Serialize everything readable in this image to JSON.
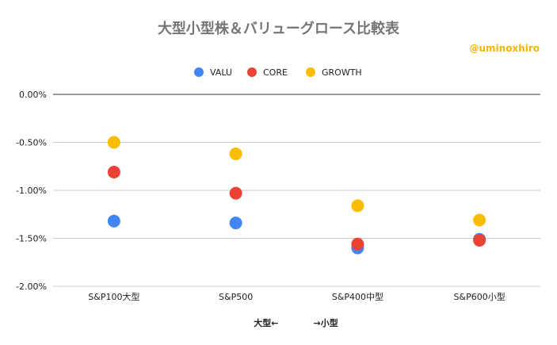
{
  "chart_data": {
    "type": "scatter",
    "title": "大型小型株＆バリューグロース比較表",
    "annotation": "@uminoxhiro",
    "categories": [
      "S&P100大型",
      "S&P500",
      "S&P400中型",
      "S&P600小型"
    ],
    "series": [
      {
        "name": "VALU",
        "color": "#4285f4",
        "values": [
          -1.32,
          -1.34,
          -1.6,
          -1.51
        ]
      },
      {
        "name": "CORE",
        "color": "#ea4335",
        "values": [
          -0.81,
          -1.03,
          -1.56,
          -1.52
        ]
      },
      {
        "name": "GROWTH",
        "color": "#fbbc04",
        "values": [
          -0.5,
          -0.62,
          -1.16,
          -1.31
        ]
      }
    ],
    "ylim": [
      -2.0,
      0.0
    ],
    "yticks": [
      "0.00%",
      "-0.50%",
      "-1.00%",
      "-1.50%",
      "-2.00%"
    ],
    "ytick_values": [
      0.0,
      -0.5,
      -1.0,
      -1.5,
      -2.0
    ],
    "xlabel": "大型←　　　　→小型",
    "ylabel": "",
    "legend_position": "top"
  }
}
